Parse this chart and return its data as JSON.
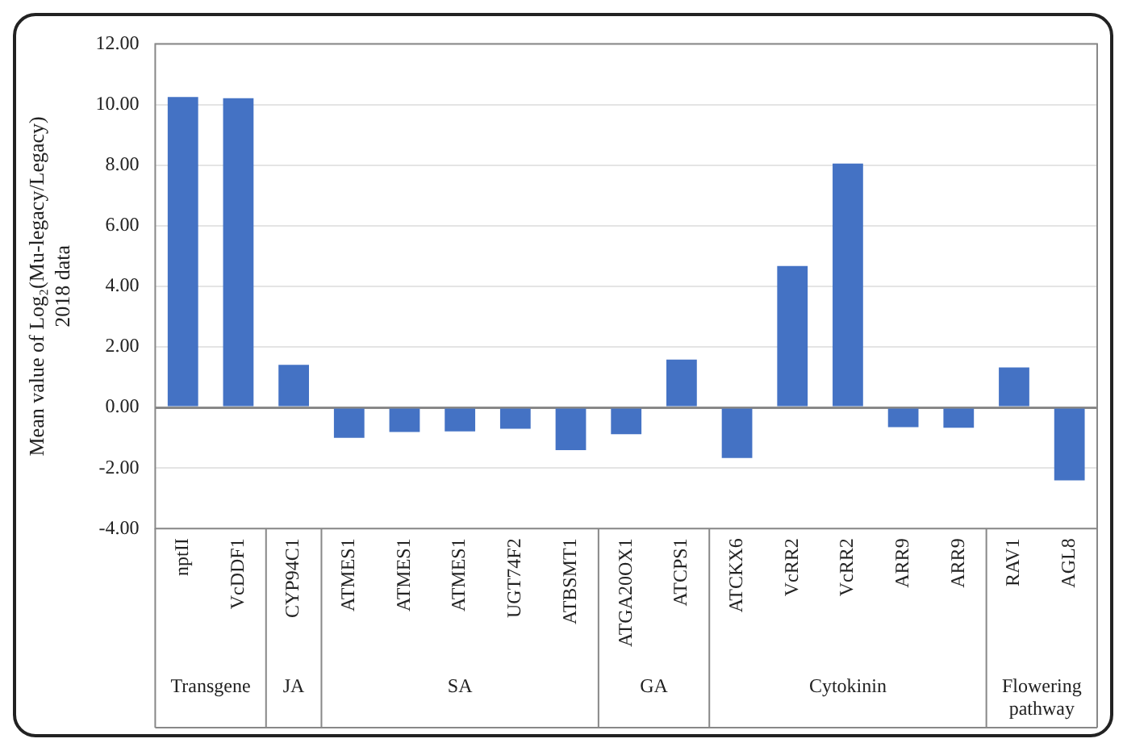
{
  "chart_data": {
    "type": "bar",
    "ylabel": "Mean value of Log₂(Mu-legacy/Legacy)\n2018 data",
    "categories": [
      "nptII",
      "VcDDF1",
      "CYP94C1",
      "ATMES1",
      "ATMES1",
      "ATMES1",
      "UGT74F2",
      "ATBSMT1",
      "ATGA20OX1",
      "ATCPS1",
      "ATCKX6",
      "VcRR2",
      "VcRR2",
      "ARR9",
      "ARR9",
      "RAV1",
      "AGL8"
    ],
    "values": [
      10.25,
      10.21,
      1.41,
      -1.0,
      -0.81,
      -0.79,
      -0.7,
      -1.41,
      -0.88,
      1.58,
      -1.67,
      4.67,
      8.05,
      -0.65,
      -0.67,
      1.32,
      -2.41
    ],
    "color": "#4472c4",
    "ylim": [
      -4,
      12
    ],
    "yticks": [
      {
        "value": -4,
        "label": "-4.00"
      },
      {
        "value": -2,
        "label": "-2.00"
      },
      {
        "value": 0,
        "label": "0.00"
      },
      {
        "value": 2,
        "label": "2.00"
      },
      {
        "value": 4,
        "label": "4.00"
      },
      {
        "value": 6,
        "label": "6.00"
      },
      {
        "value": 8,
        "label": "8.00"
      },
      {
        "value": 10,
        "label": "10.00"
      },
      {
        "value": 12,
        "label": "12.00"
      }
    ],
    "grid": "y",
    "annotations": [
      "Transgene",
      "JA",
      "SA",
      "GA",
      "Cytokinin",
      "Flowering\npathway"
    ]
  }
}
